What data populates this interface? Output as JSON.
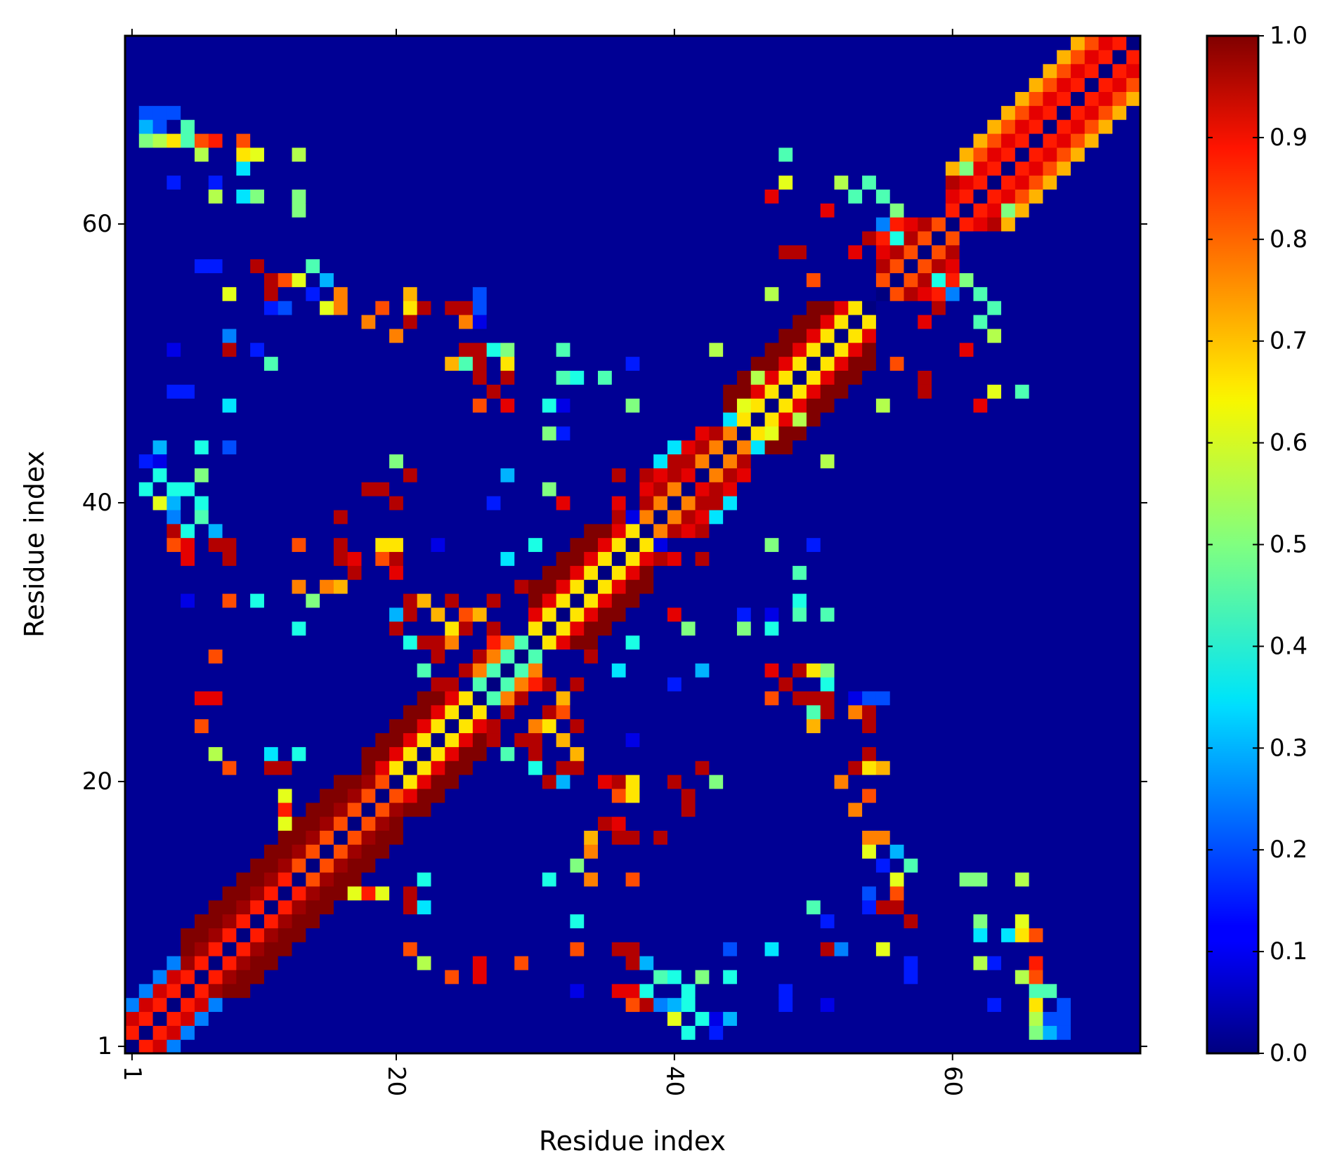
{
  "chart_data": {
    "type": "heatmap",
    "title": "",
    "xlabel": "Residue index",
    "ylabel": "Residue index",
    "n": 73,
    "x_ticks": [
      {
        "value": 1,
        "label": "1"
      },
      {
        "value": 20,
        "label": "20"
      },
      {
        "value": 40,
        "label": "40"
      },
      {
        "value": 60,
        "label": "60"
      }
    ],
    "y_ticks": [
      {
        "value": 1,
        "label": "1"
      },
      {
        "value": 20,
        "label": "20"
      },
      {
        "value": 40,
        "label": "40"
      },
      {
        "value": 60,
        "label": "60"
      }
    ],
    "colorbar": {
      "min": 0.0,
      "max": 1.0,
      "colormap": "jet",
      "ticks": [
        "0.0",
        "0.1",
        "0.2",
        "0.3",
        "0.4",
        "0.5",
        "0.6",
        "0.7",
        "0.8",
        "0.9",
        "1.0"
      ]
    },
    "background_value": 0.02,
    "diagonal_value": 0.0,
    "contact_bands": [
      {
        "from": 1,
        "to": 13,
        "pattern": [
          0.85,
          0.92,
          0.25
        ]
      },
      {
        "from": 5,
        "to": 20,
        "pattern": [
          0.8,
          0.97,
          1.0,
          1.0
        ]
      },
      {
        "from": 18,
        "to": 26,
        "pattern": [
          0.65,
          0.9,
          1.0,
          1.0
        ]
      },
      {
        "from": 26,
        "to": 30,
        "pattern": [
          0.45,
          0.75,
          0.85
        ]
      },
      {
        "from": 30,
        "to": 38,
        "pattern": [
          0.65,
          0.9,
          1.0,
          1.0
        ]
      },
      {
        "from": 38,
        "to": 45,
        "pattern": [
          0.75,
          0.95,
          0.9
        ]
      },
      {
        "from": 44,
        "to": 54,
        "pattern": [
          0.65,
          0.9,
          1.0,
          1.0
        ]
      },
      {
        "from": 55,
        "to": 60,
        "pattern": [
          0.8,
          0.95,
          0.9,
          0.85
        ]
      },
      {
        "from": 60,
        "to": 73,
        "pattern": [
          0.85,
          0.9,
          0.8,
          0.7
        ]
      }
    ],
    "off_diagonal_contacts": [
      [
        6,
        26,
        0.9
      ],
      [
        6,
        24,
        0.8
      ],
      [
        7,
        26,
        0.9
      ],
      [
        2,
        41,
        0.4
      ],
      [
        3,
        40,
        0.6
      ],
      [
        4,
        38,
        0.95
      ],
      [
        4,
        37,
        0.8
      ],
      [
        7,
        37,
        0.95
      ],
      [
        3,
        42,
        0.4
      ],
      [
        2,
        66,
        0.5
      ],
      [
        3,
        66,
        0.55
      ],
      [
        6,
        66,
        0.8
      ],
      [
        7,
        66,
        0.85
      ],
      [
        10,
        65,
        0.6
      ],
      [
        7,
        62,
        0.55
      ],
      [
        10,
        62,
        0.5
      ],
      [
        10,
        57,
        0.95
      ],
      [
        12,
        56,
        0.8
      ],
      [
        13,
        56,
        0.6
      ],
      [
        14,
        57,
        0.45
      ],
      [
        16,
        55,
        0.75
      ],
      [
        21,
        55,
        0.7
      ],
      [
        22,
        54,
        0.95
      ],
      [
        24,
        54,
        0.95
      ],
      [
        25,
        54,
        0.95
      ],
      [
        25,
        51,
        0.95
      ],
      [
        26,
        51,
        0.65
      ],
      [
        26,
        49,
        0.95
      ],
      [
        28,
        49,
        0.95
      ],
      [
        32,
        49,
        0.45
      ],
      [
        33,
        49,
        0.4
      ],
      [
        35,
        49,
        0.45
      ],
      [
        31,
        47,
        0.4
      ],
      [
        45,
        47,
        0.6
      ],
      [
        46,
        44,
        0.35
      ],
      [
        46,
        49,
        0.55
      ],
      [
        51,
        43,
        0.55
      ],
      [
        47,
        55,
        0.55
      ],
      [
        50,
        56,
        0.8
      ],
      [
        53,
        58,
        0.9
      ],
      [
        56,
        59,
        0.4
      ],
      [
        58,
        60,
        0.9
      ],
      [
        60,
        58,
        0.95
      ],
      [
        59,
        54,
        0.95
      ],
      [
        61,
        56,
        0.5
      ],
      [
        60,
        55,
        0.25
      ],
      [
        62,
        53,
        0.45
      ],
      [
        63,
        48,
        0.6
      ],
      [
        65,
        48,
        0.45
      ],
      [
        61,
        64,
        0.5
      ],
      [
        62,
        55,
        0.45
      ],
      [
        60,
        63,
        0.95
      ],
      [
        47,
        62,
        0.9
      ],
      [
        48,
        58,
        0.95
      ],
      [
        49,
        58,
        0.95
      ],
      [
        51,
        61,
        0.9
      ],
      [
        52,
        63,
        0.55
      ],
      [
        54,
        63,
        0.45
      ],
      [
        36,
        17,
        0.9
      ],
      [
        37,
        16,
        0.95
      ],
      [
        39,
        16,
        0.95
      ],
      [
        40,
        20,
        0.95
      ],
      [
        41,
        18,
        0.95
      ],
      [
        42,
        21,
        0.95
      ],
      [
        43,
        20,
        0.5
      ],
      [
        41,
        19,
        0.95
      ],
      [
        36,
        19,
        0.8
      ],
      [
        33,
        14,
        0.5
      ],
      [
        34,
        15,
        0.75
      ],
      [
        35,
        17,
        0.95
      ],
      [
        36,
        16,
        0.95
      ],
      [
        48,
        27,
        0.95
      ],
      [
        47,
        26,
        0.75
      ],
      [
        51,
        27,
        0.4
      ],
      [
        53,
        25,
        0.75
      ],
      [
        50,
        24,
        0.7
      ],
      [
        53,
        21,
        0.95
      ],
      [
        54,
        21,
        0.65
      ],
      [
        52,
        20,
        0.75
      ],
      [
        53,
        18,
        0.75
      ],
      [
        54,
        19,
        0.8
      ],
      [
        55,
        14,
        0.95
      ],
      [
        56,
        15,
        0.3
      ],
      [
        56,
        11,
        0.95
      ],
      [
        61,
        13,
        0.5
      ],
      [
        62,
        13,
        0.5
      ],
      [
        65,
        13,
        0.55
      ],
      [
        66,
        9,
        0.8
      ],
      [
        65,
        9,
        0.65
      ],
      [
        62,
        9,
        0.35
      ],
      [
        64,
        9,
        0.35
      ],
      [
        65,
        6,
        0.55
      ],
      [
        66,
        5,
        0.45
      ],
      [
        67,
        5,
        0.45
      ],
      [
        68,
        4,
        0.2
      ],
      [
        66,
        4,
        0.65
      ],
      [
        36,
        8,
        0.95
      ],
      [
        37,
        8,
        0.95
      ],
      [
        38,
        7,
        0.3
      ],
      [
        39,
        6,
        0.45
      ],
      [
        40,
        6,
        0.4
      ],
      [
        42,
        6,
        0.5
      ],
      [
        38,
        5,
        0.4
      ],
      [
        36,
        5,
        0.9
      ],
      [
        37,
        5,
        0.9
      ],
      [
        39,
        4,
        0.25
      ],
      [
        40,
        4,
        0.3
      ],
      [
        34,
        13,
        0.75
      ],
      [
        31,
        13,
        0.4
      ],
      [
        29,
        7,
        0.8
      ],
      [
        21,
        8,
        0.8
      ],
      [
        22,
        7,
        0.55
      ],
      [
        21,
        12,
        0.95
      ],
      [
        21,
        11,
        0.95
      ],
      [
        18,
        12,
        0.85
      ],
      [
        17,
        12,
        0.6
      ],
      [
        19,
        12,
        0.6
      ],
      [
        22,
        11,
        0.35
      ],
      [
        22,
        13,
        0.4
      ],
      [
        30,
        22,
        0.95
      ],
      [
        33,
        21,
        0.95
      ],
      [
        33,
        24,
        0.95
      ],
      [
        30,
        23,
        0.95
      ],
      [
        27,
        23,
        0.95
      ],
      [
        29,
        23,
        0.95
      ],
      [
        31,
        25,
        0.95
      ],
      [
        32,
        25,
        0.8
      ],
      [
        30,
        24,
        0.75
      ],
      [
        32,
        20,
        0.3
      ],
      [
        35,
        20,
        0.9
      ],
      [
        36,
        20,
        0.95
      ],
      [
        37,
        20,
        0.65
      ],
      [
        30,
        21,
        0.4
      ],
      [
        25,
        28,
        0.95
      ],
      [
        24,
        27,
        0.95
      ],
      [
        22,
        28,
        0.45
      ],
      [
        23,
        29,
        0.95
      ],
      [
        26,
        29,
        0.95
      ],
      [
        24,
        31,
        0.65
      ],
      [
        25,
        31,
        0.95
      ],
      [
        27,
        31,
        0.95
      ],
      [
        20,
        31,
        0.95
      ],
      [
        21,
        32,
        0.95
      ],
      [
        22,
        33,
        0.7
      ],
      [
        24,
        33,
        0.95
      ],
      [
        23,
        32,
        0.7
      ],
      [
        27,
        33,
        0.95
      ],
      [
        29,
        34,
        0.95
      ],
      [
        26,
        32,
        0.7
      ],
      [
        16,
        34,
        0.7
      ],
      [
        10,
        33,
        0.4
      ],
      [
        8,
        33,
        0.8
      ],
      [
        5,
        33,
        0.1
      ],
      [
        13,
        37,
        0.8
      ],
      [
        19,
        37,
        0.65
      ],
      [
        23,
        37,
        0.1
      ],
      [
        30,
        37,
        0.4
      ],
      [
        36,
        42,
        0.95
      ],
      [
        38,
        42,
        0.95
      ],
      [
        39,
        43,
        0.9
      ],
      [
        40,
        43,
        0.95
      ],
      [
        43,
        41,
        0.95
      ],
      [
        42,
        41,
        0.9
      ],
      [
        47,
        37,
        0.5
      ],
      [
        50,
        37,
        0.15
      ],
      [
        37,
        37,
        0.95
      ],
      [
        38,
        36,
        0.9
      ],
      [
        39,
        36,
        0.95
      ],
      [
        40,
        36,
        0.9
      ],
      [
        40,
        32,
        0.9
      ],
      [
        41,
        31,
        0.5
      ],
      [
        45,
        31,
        0.5
      ],
      [
        45,
        32,
        0.15
      ],
      [
        47,
        32,
        0.1
      ],
      [
        51,
        32,
        0.45
      ],
      [
        42,
        28,
        0.3
      ],
      [
        40,
        27,
        0.15
      ],
      [
        47,
        28,
        0.9
      ],
      [
        50,
        28,
        0.65
      ],
      [
        51,
        28,
        0.5
      ],
      [
        50,
        26,
        0.95
      ],
      [
        51,
        26,
        0.95
      ],
      [
        53,
        26,
        0.1
      ],
      [
        54,
        26,
        0.2
      ],
      [
        55,
        26,
        0.2
      ],
      [
        54,
        25,
        0.95
      ],
      [
        50,
        25,
        0.45
      ],
      [
        47,
        26,
        0.8
      ],
      [
        36,
        28,
        0.35
      ],
      [
        44,
        40,
        0.35
      ],
      [
        43,
        39,
        0.35
      ],
      [
        37,
        39,
        0.1
      ],
      [
        5,
        41,
        0.4
      ],
      [
        4,
        41,
        0.4
      ],
      [
        6,
        44,
        0.4
      ],
      [
        3,
        44,
        0.3
      ],
      [
        8,
        44,
        0.2
      ],
      [
        2,
        43,
        0.15
      ],
      [
        3,
        43,
        0.1
      ],
      [
        8,
        47,
        0.35
      ],
      [
        4,
        48,
        0.15
      ],
      [
        5,
        48,
        0.15
      ],
      [
        8,
        51,
        0.95
      ],
      [
        11,
        50,
        0.45
      ],
      [
        8,
        52,
        0.25
      ],
      [
        4,
        51,
        0.1
      ],
      [
        10,
        51,
        0.15
      ],
      [
        8,
        55,
        0.6
      ],
      [
        11,
        55,
        0.95
      ],
      [
        11,
        54,
        0.15
      ],
      [
        7,
        57,
        0.15
      ],
      [
        6,
        57,
        0.15
      ],
      [
        16,
        54,
        0.75
      ],
      [
        15,
        54,
        0.6
      ],
      [
        14,
        55,
        0.15
      ],
      [
        12,
        54,
        0.2
      ],
      [
        7,
        63,
        0.15
      ],
      [
        4,
        63,
        0.15
      ],
      [
        2,
        67,
        0.3
      ],
      [
        3,
        67,
        0.2
      ],
      [
        2,
        68,
        0.2
      ],
      [
        3,
        68,
        0.2
      ]
    ]
  }
}
